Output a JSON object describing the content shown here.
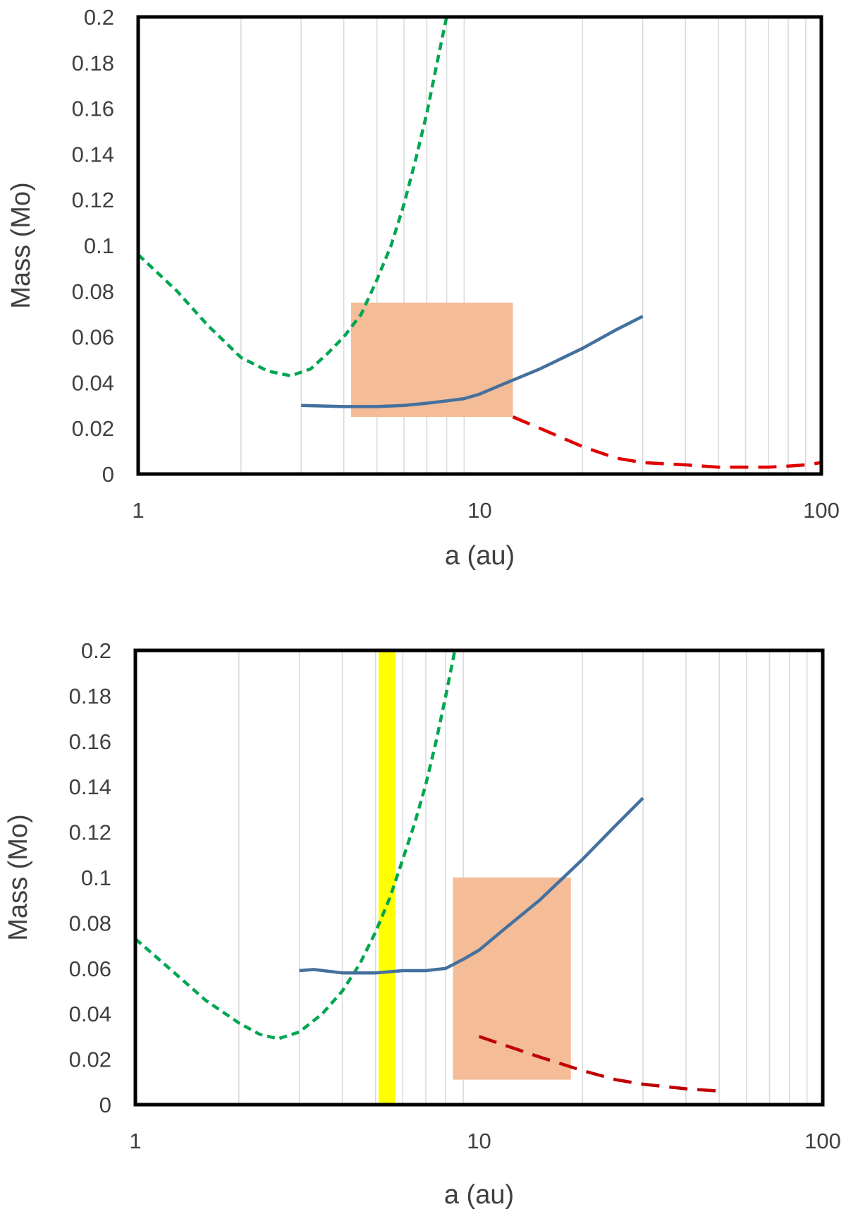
{
  "chart_data": [
    {
      "type": "line",
      "title": "",
      "xlabel": "a (au)",
      "ylabel": "Mass (Mo)",
      "xscale": "log",
      "xlim": [
        1,
        100
      ],
      "ylim": [
        0,
        0.2
      ],
      "xticks": [
        "1",
        "10",
        "100"
      ],
      "yticks": [
        "0",
        "0.02",
        "0.04",
        "0.06",
        "0.08",
        "0.1",
        "0.12",
        "0.14",
        "0.16",
        "0.18",
        "0.2"
      ],
      "grid": "vertical minor gridlines",
      "legend": "none",
      "series": [
        {
          "color": "#00a651",
          "style": "short-dash",
          "x": [
            1.0,
            1.3,
            1.6,
            2.0,
            2.4,
            2.8,
            3.2,
            3.6,
            4.0,
            4.5,
            5.0,
            5.5,
            6.0,
            6.5,
            7.0,
            7.5,
            8.0
          ],
          "y": [
            0.096,
            0.08,
            0.065,
            0.051,
            0.045,
            0.043,
            0.046,
            0.053,
            0.06,
            0.07,
            0.085,
            0.1,
            0.118,
            0.138,
            0.158,
            0.18,
            0.2
          ]
        },
        {
          "color": "#44709e",
          "style": "solid",
          "x": [
            3.0,
            4.0,
            5.0,
            6.0,
            7.0,
            8.0,
            9.0,
            10.0,
            12.0,
            15.0,
            20.0,
            25.0,
            30.0
          ],
          "y": [
            0.03,
            0.0295,
            0.0295,
            0.03,
            0.031,
            0.032,
            0.033,
            0.035,
            0.04,
            0.046,
            0.055,
            0.063,
            0.069
          ]
        },
        {
          "color": "#e00000",
          "style": "long-dash",
          "x": [
            12.5,
            15.0,
            20.0,
            25.0,
            30.0,
            40.0,
            50.0,
            60.0,
            70.0,
            80.0,
            90.0,
            100.0
          ],
          "y": [
            0.025,
            0.02,
            0.012,
            0.007,
            0.005,
            0.004,
            0.003,
            0.003,
            0.003,
            0.0035,
            0.004,
            0.005
          ]
        }
      ],
      "regions": [
        {
          "type": "rect",
          "color": "#f4bc97",
          "x": [
            4.2,
            12.5
          ],
          "y": [
            0.025,
            0.075
          ]
        }
      ]
    },
    {
      "type": "line",
      "title": "",
      "xlabel": "a (au)",
      "ylabel": "Mass (Mo)",
      "xscale": "log",
      "xlim": [
        1,
        100
      ],
      "ylim": [
        0,
        0.2
      ],
      "xticks": [
        "1",
        "10",
        "100"
      ],
      "yticks": [
        "0",
        "0.02",
        "0.04",
        "0.06",
        "0.08",
        "0.1",
        "0.12",
        "0.14",
        "0.16",
        "0.18",
        "0.2"
      ],
      "grid": "vertical minor gridlines",
      "legend": "none",
      "series": [
        {
          "color": "#00a651",
          "style": "short-dash",
          "x": [
            1.0,
            1.3,
            1.6,
            2.0,
            2.3,
            2.6,
            3.0,
            3.5,
            4.0,
            4.5,
            5.0,
            5.5,
            6.0,
            6.5,
            7.0,
            7.5,
            8.0,
            8.5
          ],
          "y": [
            0.073,
            0.058,
            0.046,
            0.036,
            0.031,
            0.029,
            0.032,
            0.04,
            0.05,
            0.062,
            0.076,
            0.091,
            0.108,
            0.124,
            0.141,
            0.16,
            0.18,
            0.2
          ]
        },
        {
          "color": "#44709e",
          "style": "solid",
          "x": [
            3.0,
            3.3,
            4.0,
            5.0,
            6.0,
            7.0,
            8.0,
            9.0,
            10.0,
            12.0,
            15.0,
            20.0,
            25.0,
            30.0
          ],
          "y": [
            0.059,
            0.0595,
            0.058,
            0.058,
            0.059,
            0.059,
            0.06,
            0.064,
            0.068,
            0.078,
            0.09,
            0.108,
            0.123,
            0.135
          ]
        },
        {
          "color": "#c00000",
          "style": "long-dash",
          "x": [
            10.0,
            15.0,
            20.0,
            25.0,
            30.0,
            40.0,
            50.0
          ],
          "y": [
            0.03,
            0.021,
            0.015,
            0.011,
            0.009,
            0.007,
            0.006
          ]
        }
      ],
      "regions": [
        {
          "type": "rect",
          "color": "#f4bc97",
          "x": [
            8.4,
            18.5
          ],
          "y": [
            0.011,
            0.1
          ]
        },
        {
          "type": "vband",
          "color": "#ffff00",
          "x": [
            5.1,
            5.7
          ],
          "y": [
            0,
            0.2
          ]
        }
      ]
    }
  ]
}
